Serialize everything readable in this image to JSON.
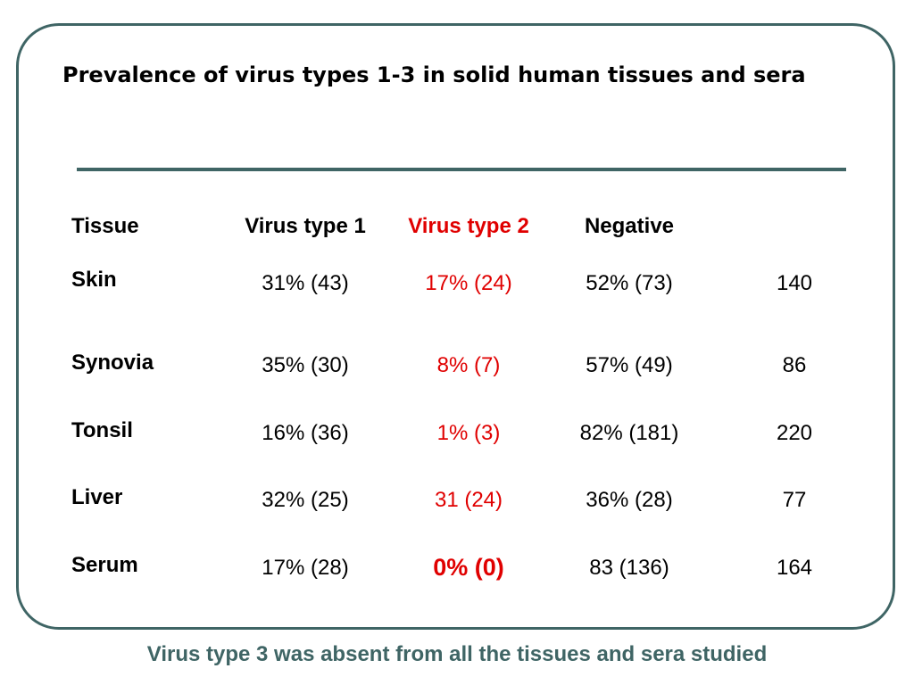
{
  "title": "Prevalence of virus types 1-3 in solid human tissues and sera",
  "table": {
    "headers": [
      "Tissue",
      "Virus type 1",
      "Virus type 2",
      "Negative",
      ""
    ],
    "rows": [
      {
        "tissue": "Skin",
        "virus1": "31% (43)",
        "virus2": "17% (24)",
        "negative": "52% (73)",
        "total": "140"
      },
      {
        "tissue": "Synovia",
        "virus1": "35% (30)",
        "virus2": "8% (7)",
        "negative": "57% (49)",
        "total": "86"
      },
      {
        "tissue": "Tonsil",
        "virus1": "16% (36)",
        "virus2": "1% (3)",
        "negative": "82% (181)",
        "total": "220"
      },
      {
        "tissue": "Liver",
        "virus1": "32% (25)",
        "virus2": "31 (24)",
        "negative": "36% (28)",
        "total": "77"
      },
      {
        "tissue": "Serum",
        "virus1": "17% (28)",
        "virus2": "0% (0)",
        "negative": "83 (136)",
        "total": "164"
      }
    ]
  },
  "footer": "Virus type 3 was absent from all the tissues and sera studied",
  "colors": {
    "frame": "#3f6565",
    "highlight": "#e00000",
    "footer": "#3f6565"
  }
}
